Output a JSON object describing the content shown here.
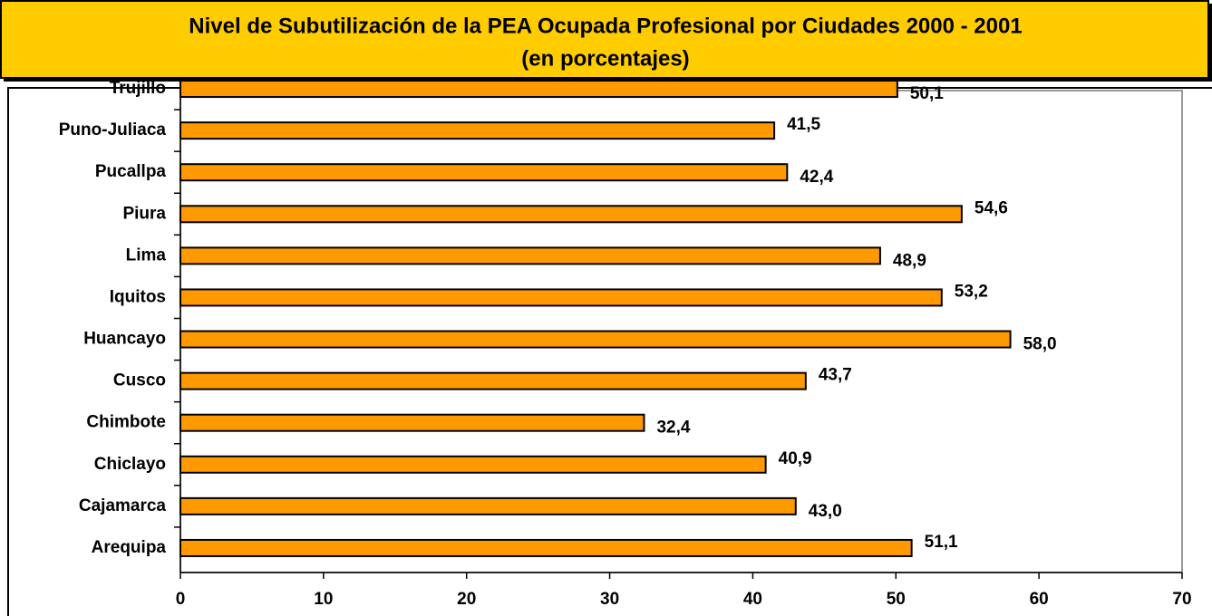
{
  "chart_data": {
    "type": "bar",
    "orientation": "horizontal",
    "title": "Nivel de Subutilización de la PEA Ocupada Profesional por Ciudades 2000 - 2001",
    "subtitle": "(en porcentajes)",
    "categories": [
      "Trujillo",
      "Puno-Juliaca",
      "Pucallpa",
      "Piura",
      "Lima",
      "Iquitos",
      "Huancayo",
      "Cusco",
      "Chimbote",
      "Chiclayo",
      "Cajamarca",
      "Arequipa"
    ],
    "values": [
      50.1,
      41.5,
      42.4,
      54.6,
      48.9,
      53.2,
      58.0,
      43.7,
      32.4,
      40.9,
      43.0,
      51.1
    ],
    "value_labels": [
      "50,1",
      "41,5",
      "42,4",
      "54,6",
      "48,9",
      "53,2",
      "58,0",
      "43,7",
      "32,4",
      "40,9",
      "43,0",
      "51,1"
    ],
    "color": "#ff9900",
    "xlim": [
      0,
      70
    ],
    "xticks": [
      0,
      10,
      20,
      30,
      40,
      50,
      60,
      70
    ]
  }
}
